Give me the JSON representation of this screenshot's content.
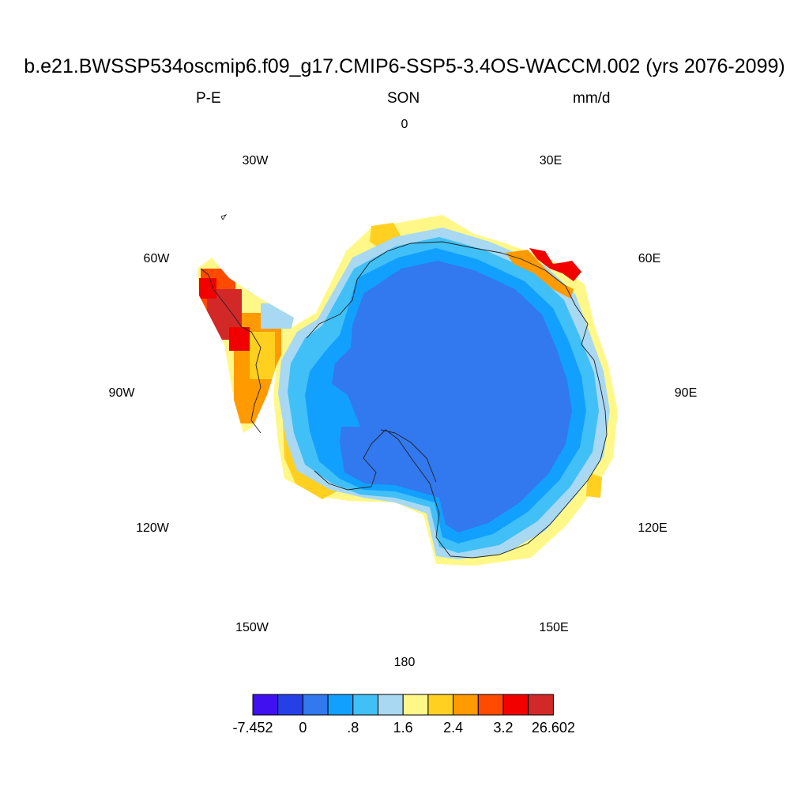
{
  "title": "b.e21.BWSSP534oscmip6.f09_g17.CMIP6-SSP5-3.4OS-WACCM.002 (yrs 2076-2099)",
  "subtitle": {
    "left": "P-E",
    "center": "SON",
    "right": "mm/d"
  },
  "longitude_labels": [
    "0",
    "30E",
    "60E",
    "90E",
    "120E",
    "150E",
    "180",
    "150W",
    "120W",
    "90W",
    "60W",
    "30W"
  ],
  "colorbar": {
    "colors": [
      "#4010f0",
      "#2640e8",
      "#3278ee",
      "#12a0ff",
      "#40c0f6",
      "#a8d8f2",
      "#fff888",
      "#ffd020",
      "#ff9a00",
      "#ff4a00",
      "#f20000",
      "#d22828"
    ],
    "labels": [
      "-7.452",
      "0",
      ".8",
      "1.6",
      "2.4",
      "3.2",
      "26.602"
    ]
  },
  "map_regions": {
    "interior": "0 to .4",
    "ice_edge": ".8 to 1.6",
    "coast": "1.6 to 2.4",
    "peninsula": "2.8 to 26.602"
  }
}
